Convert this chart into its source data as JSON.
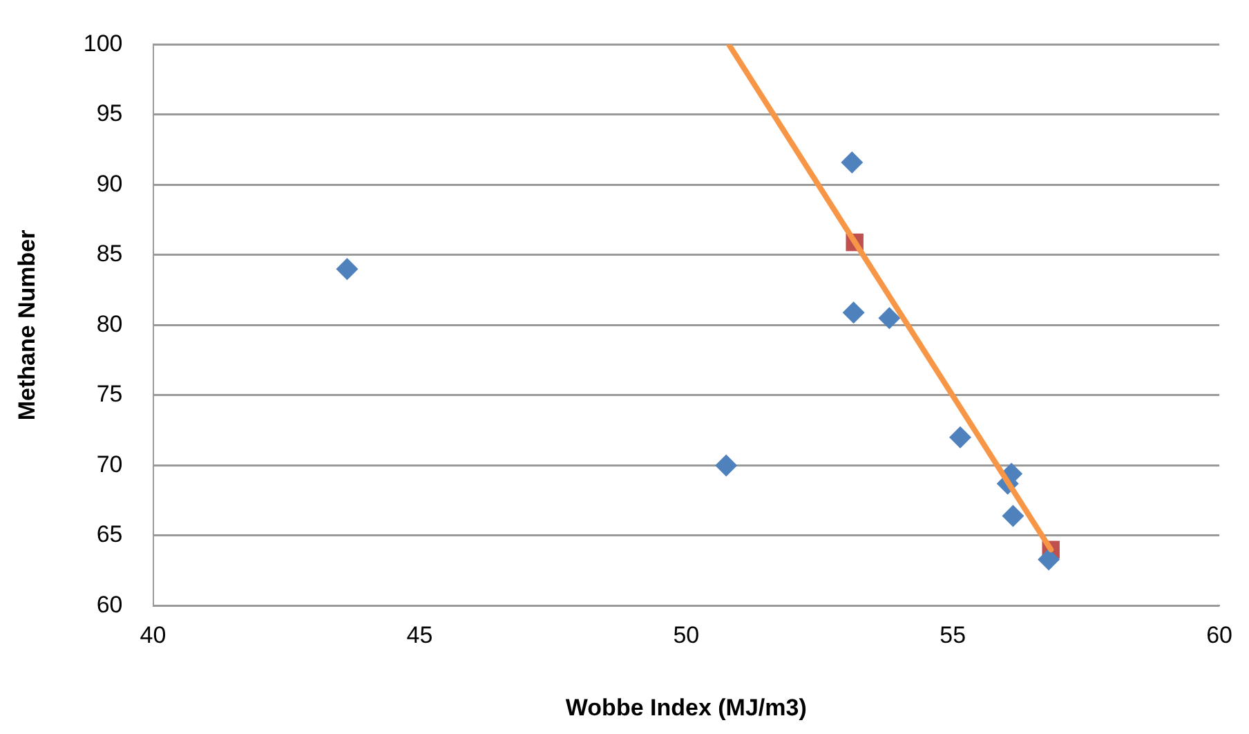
{
  "chart_data": {
    "type": "scatter",
    "xlabel": "Wobbe Index (MJ/m3)",
    "ylabel": "Methane Number",
    "xlim": [
      40,
      60
    ],
    "xticks": [
      40,
      45,
      50,
      55,
      60
    ],
    "ylim": [
      60,
      100
    ],
    "yticks": [
      60,
      65,
      70,
      75,
      80,
      85,
      90,
      95,
      100
    ],
    "grid": "y",
    "legend": false,
    "series": [
      {
        "marker": "diamond",
        "color": "#4f81bd",
        "x": [
          43.64,
          50.75,
          53.11,
          53.14,
          53.81,
          55.14,
          56.1,
          56.03,
          56.13,
          56.8
        ],
        "values": [
          84.0,
          70.0,
          91.6,
          80.9,
          80.5,
          72.0,
          69.4,
          68.7,
          66.4,
          63.3
        ]
      },
      {
        "marker": "square",
        "color": "#c0504d",
        "x": [
          53.16,
          56.84
        ],
        "values": [
          85.9,
          64.0
        ]
      },
      {
        "type": "line",
        "marker": "none",
        "color": "#f79646",
        "x": [
          50.8,
          56.84
        ],
        "values": [
          100,
          64.0
        ]
      }
    ]
  }
}
